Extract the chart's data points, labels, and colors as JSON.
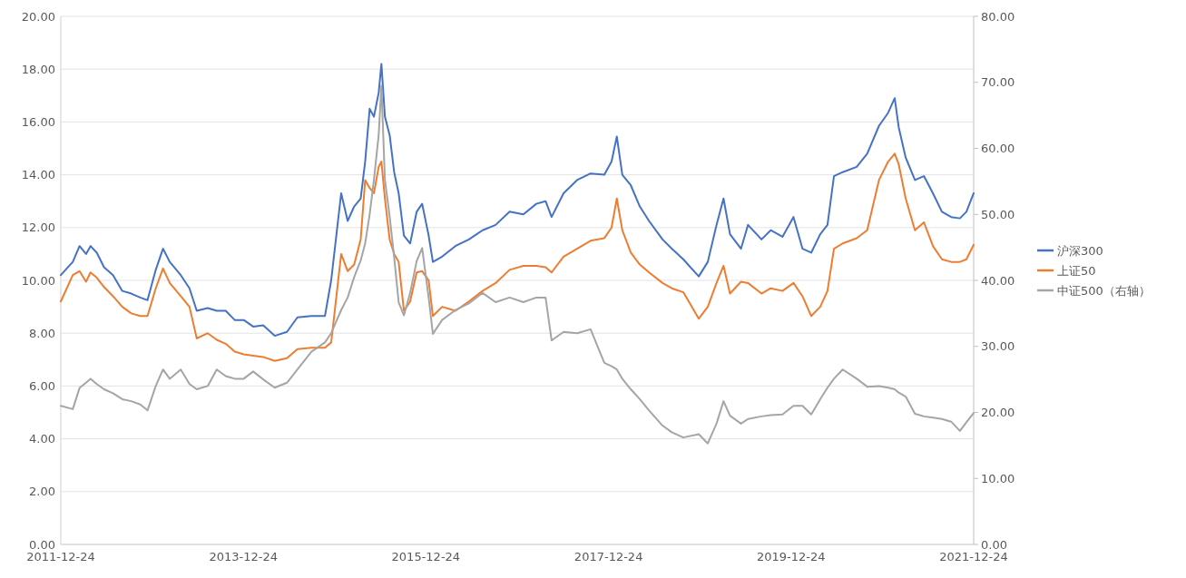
{
  "chart_data": {
    "type": "line",
    "x": [
      "2011-12-24",
      "2012-02-10",
      "2012-03-08",
      "2012-04-03",
      "2012-04-21",
      "2012-05-16",
      "2012-06-14",
      "2012-07-20",
      "2012-08-26",
      "2012-10-01",
      "2012-11-06",
      "2012-12-05",
      "2013-01-07",
      "2013-02-05",
      "2013-03-04",
      "2013-04-17",
      "2013-05-22",
      "2013-06-20",
      "2013-08-03",
      "2013-09-08",
      "2013-10-14",
      "2013-11-19",
      "2013-12-25",
      "2014-02-01",
      "2014-03-13",
      "2014-04-28",
      "2014-06-16",
      "2014-07-28",
      "2014-09-22",
      "2014-11-15",
      "2014-12-10",
      "2015-01-19",
      "2015-02-14",
      "2015-03-12",
      "2015-04-07",
      "2015-04-25",
      "2015-05-13",
      "2015-05-30",
      "2015-06-18",
      "2015-06-29",
      "2015-07-13",
      "2015-08-01",
      "2015-08-19",
      "2015-09-06",
      "2015-09-27",
      "2015-10-22",
      "2015-11-17",
      "2015-12-09",
      "2016-01-04",
      "2016-01-21",
      "2016-02-27",
      "2016-04-20",
      "2016-06-13",
      "2016-08-07",
      "2016-09-28",
      "2016-11-23",
      "2017-01-17",
      "2017-03-10",
      "2017-04-16",
      "2017-05-10",
      "2017-06-27",
      "2017-08-20",
      "2017-10-13",
      "2017-12-07",
      "2018-01-05",
      "2018-01-26",
      "2018-02-17",
      "2018-03-23",
      "2018-04-28",
      "2018-06-04",
      "2018-07-28",
      "2018-09-03",
      "2018-10-19",
      "2018-12-20",
      "2019-01-25",
      "2019-03-01",
      "2019-03-29",
      "2019-04-24",
      "2019-06-07",
      "2019-07-05",
      "2019-08-28",
      "2019-10-04",
      "2019-11-20",
      "2020-01-03",
      "2020-02-08",
      "2020-03-14",
      "2020-04-19",
      "2020-05-18",
      "2020-06-13",
      "2020-07-18",
      "2020-09-12",
      "2020-10-24",
      "2020-12-10",
      "2021-01-16",
      "2021-02-11",
      "2021-02-27",
      "2021-03-27",
      "2021-05-03",
      "2021-06-08",
      "2021-07-14",
      "2021-08-19",
      "2021-09-25",
      "2021-10-30",
      "2021-11-25",
      "2021-12-24"
    ],
    "series": [
      {
        "name": "沪深300",
        "color": "#4472c4",
        "values": [
          10.2,
          10.7,
          11.3,
          11.0,
          11.3,
          11.05,
          10.5,
          10.2,
          9.6,
          9.5,
          9.35,
          9.25,
          10.4,
          11.2,
          10.7,
          10.2,
          9.7,
          8.85,
          8.95,
          8.85,
          8.85,
          8.5,
          8.5,
          8.25,
          8.3,
          7.9,
          8.05,
          8.6,
          8.65,
          8.65,
          10.0,
          13.3,
          12.25,
          12.8,
          13.1,
          14.5,
          16.5,
          16.2,
          17.1,
          18.2,
          16.2,
          15.5,
          14.1,
          13.3,
          11.7,
          11.4,
          12.6,
          12.9,
          11.7,
          10.7,
          10.9,
          11.3,
          11.55,
          11.9,
          12.1,
          12.6,
          12.5,
          12.9,
          13.0,
          12.4,
          13.3,
          13.8,
          14.05,
          14.0,
          14.5,
          15.45,
          14.0,
          13.6,
          12.8,
          12.25,
          11.55,
          11.2,
          10.8,
          10.15,
          10.7,
          12.1,
          13.1,
          11.75,
          11.2,
          12.1,
          11.55,
          11.9,
          11.65,
          12.4,
          11.2,
          11.05,
          11.75,
          12.1,
          13.95,
          14.1,
          14.3,
          14.8,
          15.85,
          16.35,
          16.9,
          15.8,
          14.65,
          13.8,
          13.95,
          13.3,
          12.6,
          12.4,
          12.35,
          12.6,
          13.3
        ]
      },
      {
        "name": "上证50",
        "color": "#ed7d31",
        "values": [
          9.2,
          10.2,
          10.35,
          9.95,
          10.3,
          10.1,
          9.75,
          9.4,
          9.0,
          8.75,
          8.65,
          8.65,
          9.7,
          10.45,
          9.9,
          9.4,
          9.0,
          7.8,
          8.0,
          7.75,
          7.6,
          7.3,
          7.2,
          7.15,
          7.1,
          6.95,
          7.05,
          7.4,
          7.45,
          7.45,
          7.65,
          11.0,
          10.35,
          10.6,
          11.55,
          13.8,
          13.5,
          13.3,
          14.3,
          14.5,
          13.1,
          11.55,
          11.0,
          10.7,
          8.85,
          9.2,
          10.3,
          10.35,
          10.0,
          8.65,
          9.0,
          8.85,
          9.2,
          9.6,
          9.9,
          10.4,
          10.55,
          10.55,
          10.5,
          10.3,
          10.9,
          11.2,
          11.5,
          11.6,
          12.0,
          13.1,
          11.9,
          11.05,
          10.6,
          10.3,
          9.9,
          9.7,
          9.55,
          8.55,
          9.0,
          9.9,
          10.55,
          9.5,
          9.95,
          9.9,
          9.5,
          9.7,
          9.6,
          9.9,
          9.4,
          8.65,
          9.0,
          9.6,
          11.2,
          11.4,
          11.6,
          11.9,
          13.8,
          14.5,
          14.8,
          14.4,
          13.1,
          11.9,
          12.2,
          11.3,
          10.8,
          10.7,
          10.7,
          10.8,
          11.35
        ]
      },
      {
        "name": "中证500（右轴）",
        "color": "#a5a5a5",
        "axis": "y2",
        "values": [
          21.0,
          20.5,
          23.7,
          24.5,
          25.1,
          24.3,
          23.5,
          22.9,
          22.0,
          21.7,
          21.2,
          20.3,
          24.0,
          26.5,
          25.1,
          26.5,
          24.3,
          23.5,
          24.0,
          26.5,
          25.5,
          25.1,
          25.1,
          26.2,
          25.0,
          23.75,
          24.5,
          26.5,
          29.2,
          30.6,
          32.0,
          35.5,
          37.4,
          40.5,
          43.0,
          45.6,
          50.0,
          55.2,
          62.0,
          69.5,
          55.2,
          49.7,
          43.5,
          36.7,
          34.7,
          38.1,
          42.9,
          44.9,
          37.4,
          31.9,
          34.0,
          35.5,
          36.5,
          38.1,
          36.7,
          37.4,
          36.7,
          37.4,
          37.4,
          30.9,
          32.2,
          32.0,
          32.6,
          27.5,
          27.0,
          26.5,
          25.1,
          23.5,
          22.0,
          20.3,
          18.0,
          17.0,
          16.2,
          16.7,
          15.3,
          18.3,
          21.7,
          19.5,
          18.3,
          19.0,
          19.4,
          19.6,
          19.7,
          21.0,
          21.0,
          19.7,
          22.0,
          23.75,
          25.1,
          26.5,
          25.1,
          23.9,
          24.0,
          23.75,
          23.5,
          23.0,
          22.4,
          19.8,
          19.4,
          19.2,
          19.0,
          18.6,
          17.2,
          18.5,
          19.9
        ]
      }
    ],
    "xlim": [
      "2011-12-24",
      "2021-12-24"
    ],
    "xticks": [
      "2011-12-24",
      "2013-12-24",
      "2015-12-24",
      "2017-12-24",
      "2019-12-24",
      "2021-12-24"
    ],
    "ylim": [
      0,
      20
    ],
    "yticks": [
      {
        "value": 0,
        "label": "0.00"
      },
      {
        "value": 2,
        "label": "2.00"
      },
      {
        "value": 4,
        "label": "4.00"
      },
      {
        "value": 6,
        "label": "6.00"
      },
      {
        "value": 8,
        "label": "8.00"
      },
      {
        "value": 10,
        "label": "10.00"
      },
      {
        "value": 12,
        "label": "12.00"
      },
      {
        "value": 14,
        "label": "14.00"
      },
      {
        "value": 16,
        "label": "16.00"
      },
      {
        "value": 18,
        "label": "18.00"
      },
      {
        "value": 20,
        "label": "20.00"
      }
    ],
    "y2lim": [
      0,
      80
    ],
    "y2ticks": [
      {
        "value": 0,
        "label": "0.00"
      },
      {
        "value": 10,
        "label": "10.00"
      },
      {
        "value": 20,
        "label": "20.00"
      },
      {
        "value": 30,
        "label": "30.00"
      },
      {
        "value": 40,
        "label": "40.00"
      },
      {
        "value": 50,
        "label": "50.00"
      },
      {
        "value": 60,
        "label": "60.00"
      },
      {
        "value": 70,
        "label": "70.00"
      },
      {
        "value": 80,
        "label": "80.00"
      }
    ],
    "grid": "y",
    "legend": "right",
    "marker": "none",
    "line_style": "solid"
  }
}
